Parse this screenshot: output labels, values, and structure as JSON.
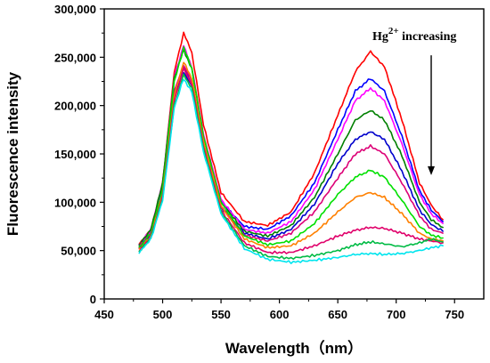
{
  "chart_data": {
    "type": "line",
    "xlabel": "Wavelength（nm）",
    "ylabel": "Fluorescence intensity",
    "xlim": [
      450,
      775
    ],
    "ylim": [
      0,
      300000
    ],
    "x_ticks": [
      450,
      500,
      550,
      600,
      650,
      700,
      750
    ],
    "x_tick_labels": [
      "450",
      "500",
      "550",
      "600",
      "650",
      "700",
      "750"
    ],
    "y_ticks": [
      0,
      50000,
      100000,
      150000,
      200000,
      250000,
      300000
    ],
    "y_tick_labels": [
      "0",
      "50,000",
      "100,000",
      "150,000",
      "200,000",
      "250,000",
      "300,000"
    ],
    "grid": false,
    "legend": "none",
    "annotation": {
      "text_base": "Hg",
      "text_sup": "2+",
      "text_rest": " increasing",
      "arrow_x": 730,
      "arrow_from": 252000,
      "arrow_to": 128000
    },
    "series": [
      {
        "color": "#ff0000",
        "x": [
          480,
          490,
          500,
          510,
          518,
          525,
          535,
          550,
          570,
          590,
          610,
          630,
          650,
          665,
          678,
          690,
          705,
          720,
          730,
          740
        ],
        "y": [
          57000,
          72000,
          120000,
          235000,
          275000,
          255000,
          180000,
          110000,
          80000,
          76000,
          90000,
          130000,
          190000,
          235000,
          256000,
          240000,
          185000,
          120000,
          97000,
          82000
        ]
      },
      {
        "color": "#0000ff",
        "x": [
          480,
          490,
          500,
          510,
          518,
          525,
          535,
          550,
          570,
          590,
          610,
          630,
          650,
          665,
          678,
          690,
          705,
          720,
          730,
          740
        ],
        "y": [
          55000,
          70000,
          115000,
          215000,
          240000,
          222000,
          160000,
          100000,
          75000,
          72000,
          86000,
          120000,
          175000,
          215000,
          228000,
          215000,
          168000,
          112000,
          92000,
          80000
        ]
      },
      {
        "color": "#ff00ff",
        "x": [
          480,
          490,
          500,
          510,
          518,
          525,
          535,
          550,
          570,
          590,
          610,
          630,
          650,
          665,
          678,
          690,
          705,
          720,
          730,
          740
        ],
        "y": [
          56000,
          72000,
          120000,
          230000,
          262000,
          240000,
          170000,
          103000,
          72000,
          68000,
          80000,
          113000,
          165000,
          205000,
          218000,
          205000,
          160000,
          108000,
          88000,
          78000
        ]
      },
      {
        "color": "#008000",
        "x": [
          480,
          490,
          500,
          510,
          518,
          525,
          535,
          550,
          570,
          590,
          610,
          630,
          650,
          665,
          678,
          690,
          705,
          720,
          730,
          740
        ],
        "y": [
          56000,
          72000,
          120000,
          228000,
          258000,
          238000,
          168000,
          100000,
          70000,
          65000,
          76000,
          105000,
          150000,
          185000,
          195000,
          185000,
          148000,
          100000,
          82000,
          74000
        ]
      },
      {
        "color": "#0000cc",
        "x": [
          480,
          490,
          500,
          510,
          518,
          525,
          535,
          550,
          570,
          590,
          610,
          630,
          650,
          665,
          678,
          690,
          705,
          720,
          730,
          740
        ],
        "y": [
          52000,
          66000,
          110000,
          210000,
          235000,
          220000,
          155000,
          95000,
          68000,
          62000,
          72000,
          98000,
          140000,
          165000,
          173000,
          165000,
          132000,
          92000,
          77000,
          70000
        ]
      },
      {
        "color": "#dd0077",
        "x": [
          480,
          490,
          500,
          510,
          518,
          525,
          535,
          550,
          570,
          590,
          610,
          630,
          650,
          665,
          678,
          690,
          705,
          720,
          730,
          740
        ],
        "y": [
          54000,
          68000,
          112000,
          215000,
          242000,
          225000,
          160000,
          96000,
          66000,
          60000,
          68000,
          90000,
          125000,
          150000,
          158000,
          150000,
          120000,
          86000,
          72000,
          68000
        ]
      },
      {
        "color": "#00e000",
        "x": [
          480,
          490,
          500,
          510,
          518,
          525,
          535,
          550,
          570,
          590,
          610,
          630,
          650,
          665,
          678,
          690,
          705,
          720,
          730,
          740
        ],
        "y": [
          53000,
          68000,
          113000,
          225000,
          260000,
          238000,
          168000,
          100000,
          65000,
          56000,
          60000,
          78000,
          108000,
          126000,
          133000,
          126000,
          102000,
          75000,
          66000,
          63000
        ]
      },
      {
        "color": "#ff8000",
        "x": [
          480,
          490,
          500,
          510,
          518,
          525,
          535,
          550,
          570,
          590,
          610,
          630,
          650,
          665,
          678,
          690,
          705,
          720,
          730,
          740
        ],
        "y": [
          51000,
          65000,
          108000,
          210000,
          245000,
          228000,
          162000,
          96000,
          62000,
          53000,
          55000,
          68000,
          90000,
          105000,
          110000,
          105000,
          88000,
          68000,
          62000,
          60000
        ]
      },
      {
        "color": "#e0006a",
        "x": [
          480,
          490,
          500,
          510,
          518,
          525,
          535,
          550,
          570,
          590,
          610,
          630,
          650,
          665,
          678,
          690,
          705,
          720,
          730,
          740
        ],
        "y": [
          50000,
          64000,
          106000,
          205000,
          238000,
          222000,
          158000,
          92000,
          58000,
          48000,
          48000,
          55000,
          65000,
          71000,
          74000,
          73000,
          68000,
          62000,
          60000,
          58000
        ]
      },
      {
        "color": "#00bb44",
        "x": [
          480,
          490,
          500,
          510,
          518,
          525,
          535,
          550,
          570,
          590,
          610,
          630,
          650,
          665,
          678,
          690,
          705,
          720,
          730,
          740
        ],
        "y": [
          49000,
          63000,
          104000,
          200000,
          232000,
          218000,
          155000,
          90000,
          55000,
          44000,
          42000,
          45000,
          50000,
          56000,
          59000,
          57000,
          54000,
          58000,
          62000,
          59000
        ]
      },
      {
        "color": "#00e5ee",
        "x": [
          480,
          490,
          500,
          510,
          518,
          525,
          535,
          550,
          570,
          590,
          610,
          630,
          650,
          665,
          678,
          690,
          705,
          720,
          730,
          740
        ],
        "y": [
          48000,
          62000,
          102000,
          198000,
          228000,
          214000,
          152000,
          88000,
          52000,
          41000,
          38000,
          40000,
          43000,
          46000,
          47000,
          46000,
          47000,
          50000,
          53000,
          55000
        ]
      }
    ]
  }
}
